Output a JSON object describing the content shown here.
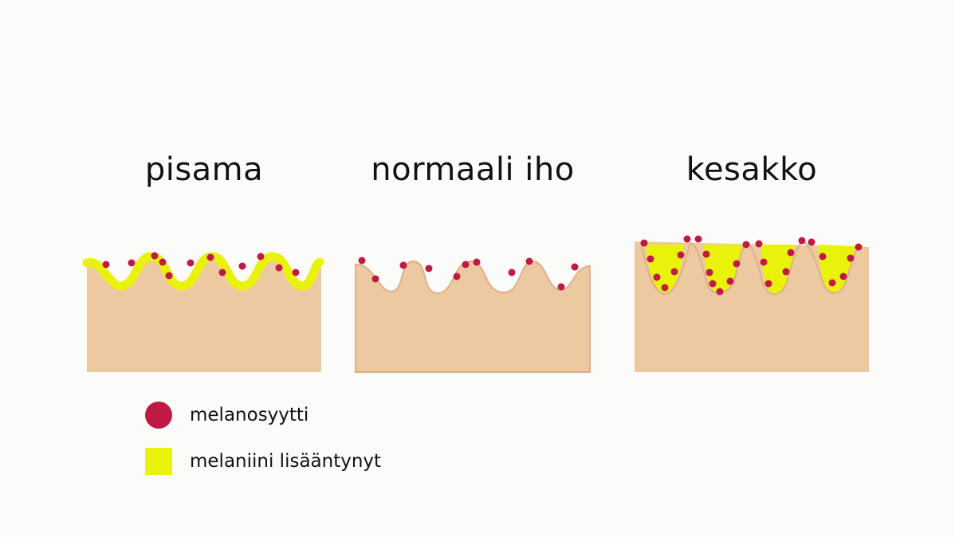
{
  "panels": [
    {
      "title": "pisama"
    },
    {
      "title": "normaali iho"
    },
    {
      "title": "kesakko"
    }
  ],
  "legend": [
    {
      "label": "melanosyytti"
    },
    {
      "label": "melaniini lisääntynyt"
    }
  ],
  "colors": {
    "skin": "#ecc9a1",
    "skin_edge": "#ddb088",
    "melanin": "#e9f20a",
    "melanocyte": "#bf1a45",
    "background": "#fbfbf9",
    "text": "#111111"
  }
}
